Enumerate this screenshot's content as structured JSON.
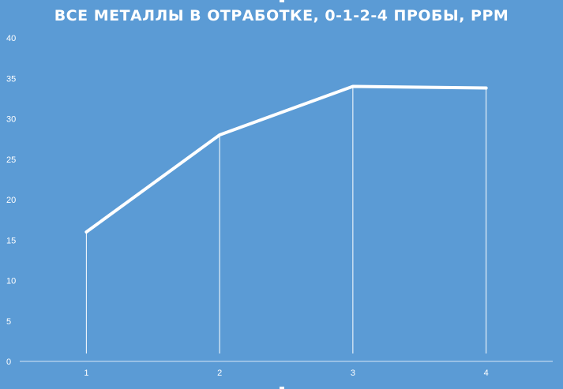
{
  "chart_data": {
    "type": "line",
    "title": "ВСЕ МЕТАЛЛЫ В ОТРАБОТКЕ, 0-1-2-4 ПРОБЫ, PPM",
    "xlabel": "",
    "ylabel": "",
    "categories": [
      "1",
      "2",
      "3",
      "4"
    ],
    "series": [
      {
        "values": [
          16,
          28,
          34,
          33.8
        ]
      }
    ],
    "ylim": [
      0,
      40
    ],
    "yticks": [
      0,
      5,
      10,
      15,
      20,
      25,
      30,
      35,
      40
    ],
    "drop_lines": true,
    "grid": false,
    "legend": "none",
    "colors": {
      "background": "#5b9bd5",
      "line": "#ffffff",
      "text": "#ffffff"
    }
  }
}
